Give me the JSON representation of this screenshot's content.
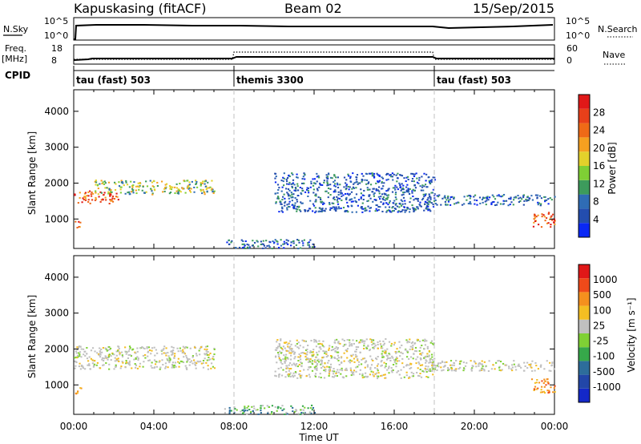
{
  "header": {
    "station": "Kapuskasing (fitACF)",
    "beam": "Beam 02",
    "date": "15/Sep/2015"
  },
  "strip_labels": {
    "nsky": "N.Sky",
    "freq_top": "Freq.",
    "freq_unit": "[MHz]",
    "cpid": "CPID",
    "nsearch": "N.Search",
    "nave": "Nave"
  },
  "strip_axes": {
    "noise_ticks": [
      "10^5",
      "10^0"
    ],
    "noise_right_ticks": [
      "10^5",
      "10^0"
    ],
    "freq_ticks": [
      "18",
      "8"
    ],
    "nave_ticks": [
      "60",
      "0"
    ]
  },
  "cpid_segments": [
    {
      "label": "tau (fast) 503",
      "start_h": 0,
      "end_h": 8
    },
    {
      "label": "themis 3300",
      "start_h": 8,
      "end_h": 18
    },
    {
      "label": "tau (fast) 503",
      "start_h": 18,
      "end_h": 24
    }
  ],
  "colors": {
    "power_scale": [
      "#0a28f5",
      "#234dae",
      "#2f6cb5",
      "#3d9b5c",
      "#7fcf35",
      "#e3d12b",
      "#f5a020",
      "#ef6a17",
      "#e8401a",
      "#e01818"
    ],
    "velocity_scale": [
      "#e01818",
      "#ef4a1a",
      "#f5901e",
      "#f4be22",
      "#c0c0c0",
      "#7fd135",
      "#36a84a",
      "#2d6d9b",
      "#2246a8",
      "#1428c8"
    ]
  },
  "chart_data": [
    {
      "type": "heatmap",
      "name": "power",
      "xlabel": "",
      "ylabel": "Slant Range [km]",
      "y_ticks": [
        "1000",
        "2000",
        "3000",
        "4000"
      ],
      "colorbar_label": "Power [dB]",
      "colorbar_ticks": [
        "4",
        "8",
        "12",
        "16",
        "20",
        "24",
        "28"
      ],
      "xlim_hours": [
        0,
        24
      ],
      "ylim_km": [
        180,
        4600
      ],
      "regions": [
        {
          "t0": 0.0,
          "t1": 2.2,
          "r0": 1450,
          "r1": 1800,
          "level": "high"
        },
        {
          "t0": 1.0,
          "t1": 7.0,
          "r0": 1700,
          "r1": 2100,
          "level": "mid"
        },
        {
          "t0": 0.0,
          "t1": 0.4,
          "r0": 750,
          "r1": 950,
          "level": "high"
        },
        {
          "t0": 10.0,
          "t1": 18.0,
          "r0": 1200,
          "r1": 2300,
          "level": "low"
        },
        {
          "t0": 17.5,
          "t1": 24.0,
          "r0": 1400,
          "r1": 1700,
          "level": "low"
        },
        {
          "t0": 22.8,
          "t1": 24.0,
          "r0": 800,
          "r1": 1200,
          "level": "high"
        },
        {
          "t0": 7.5,
          "t1": 12.0,
          "r0": 200,
          "r1": 450,
          "level": "low"
        }
      ]
    },
    {
      "type": "heatmap",
      "name": "velocity",
      "xlabel": "Time UT",
      "ylabel": "Slant Range [km]",
      "y_ticks": [
        "1000",
        "2000",
        "3000",
        "4000"
      ],
      "x_ticks": [
        "00:00",
        "04:00",
        "08:00",
        "12:00",
        "16:00",
        "20:00",
        "00:00"
      ],
      "colorbar_label": "Velocity [m s⁻¹]",
      "colorbar_ticks": [
        "1000",
        "500",
        "100",
        "25",
        "-25",
        "-100",
        "-500",
        "-1000"
      ],
      "xlim_hours": [
        0,
        24
      ],
      "ylim_km": [
        180,
        4600
      ],
      "regions": [
        {
          "t0": 0.0,
          "t1": 7.0,
          "r0": 1450,
          "r1": 2100,
          "level": "grey"
        },
        {
          "t0": 0.0,
          "t1": 0.4,
          "r0": 750,
          "r1": 950,
          "level": "orange"
        },
        {
          "t0": 10.0,
          "t1": 18.0,
          "r0": 1200,
          "r1": 2300,
          "level": "grey"
        },
        {
          "t0": 17.5,
          "t1": 24.0,
          "r0": 1400,
          "r1": 1700,
          "level": "grey"
        },
        {
          "t0": 22.8,
          "t1": 24.0,
          "r0": 800,
          "r1": 1200,
          "level": "orange"
        },
        {
          "t0": 7.5,
          "t1": 12.0,
          "r0": 200,
          "r1": 450,
          "level": "green"
        }
      ]
    }
  ]
}
